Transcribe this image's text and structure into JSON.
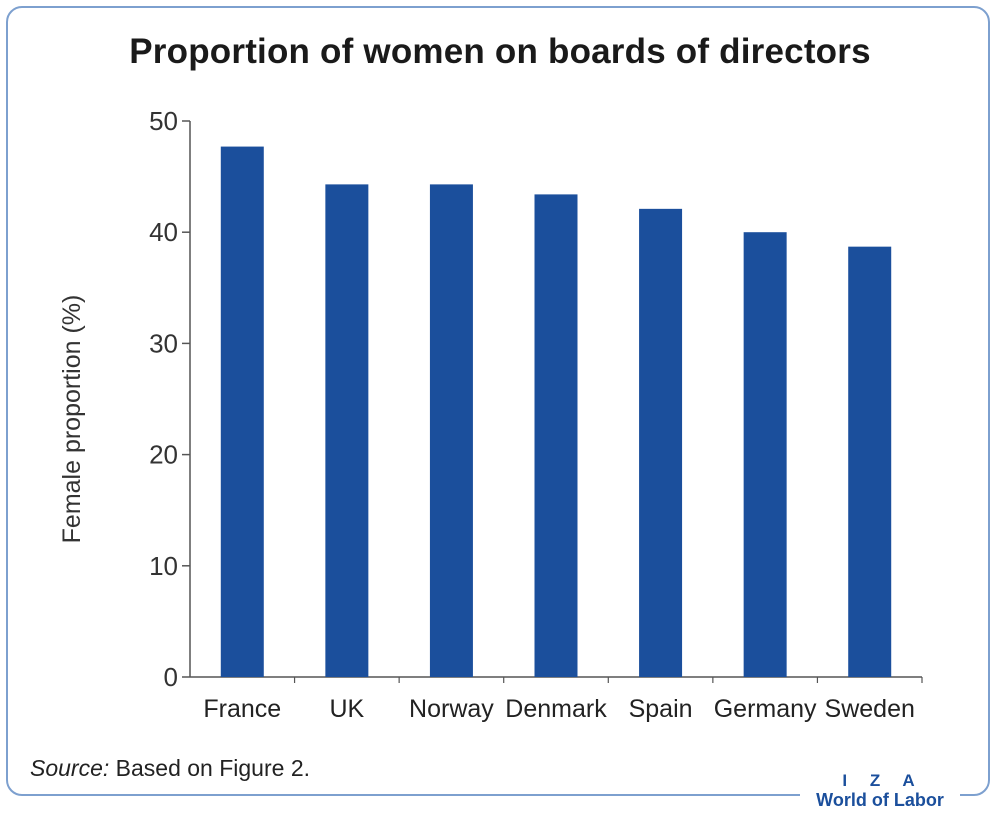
{
  "chart_data": {
    "type": "bar",
    "title": "Proportion of women on boards of directors",
    "ylabel": "Female proportion (%)",
    "xlabel": "",
    "categories": [
      "France",
      "UK",
      "Norway",
      "Denmark",
      "Spain",
      "Germany",
      "Sweden"
    ],
    "values": [
      47.7,
      44.3,
      44.3,
      43.4,
      42.1,
      40.0,
      38.7
    ],
    "ylim": [
      0,
      50
    ],
    "yticks": [
      0,
      10,
      20,
      30,
      40,
      50
    ],
    "grid": false,
    "bar_color": "#1b4f9c"
  },
  "source": {
    "label": "Source:",
    "text": " Based on Figure 2."
  },
  "logo": {
    "line1": "I Z A",
    "line2": "World of Labor"
  },
  "colors": {
    "frame": "#7da0cf",
    "accent": "#1b4f9c"
  }
}
